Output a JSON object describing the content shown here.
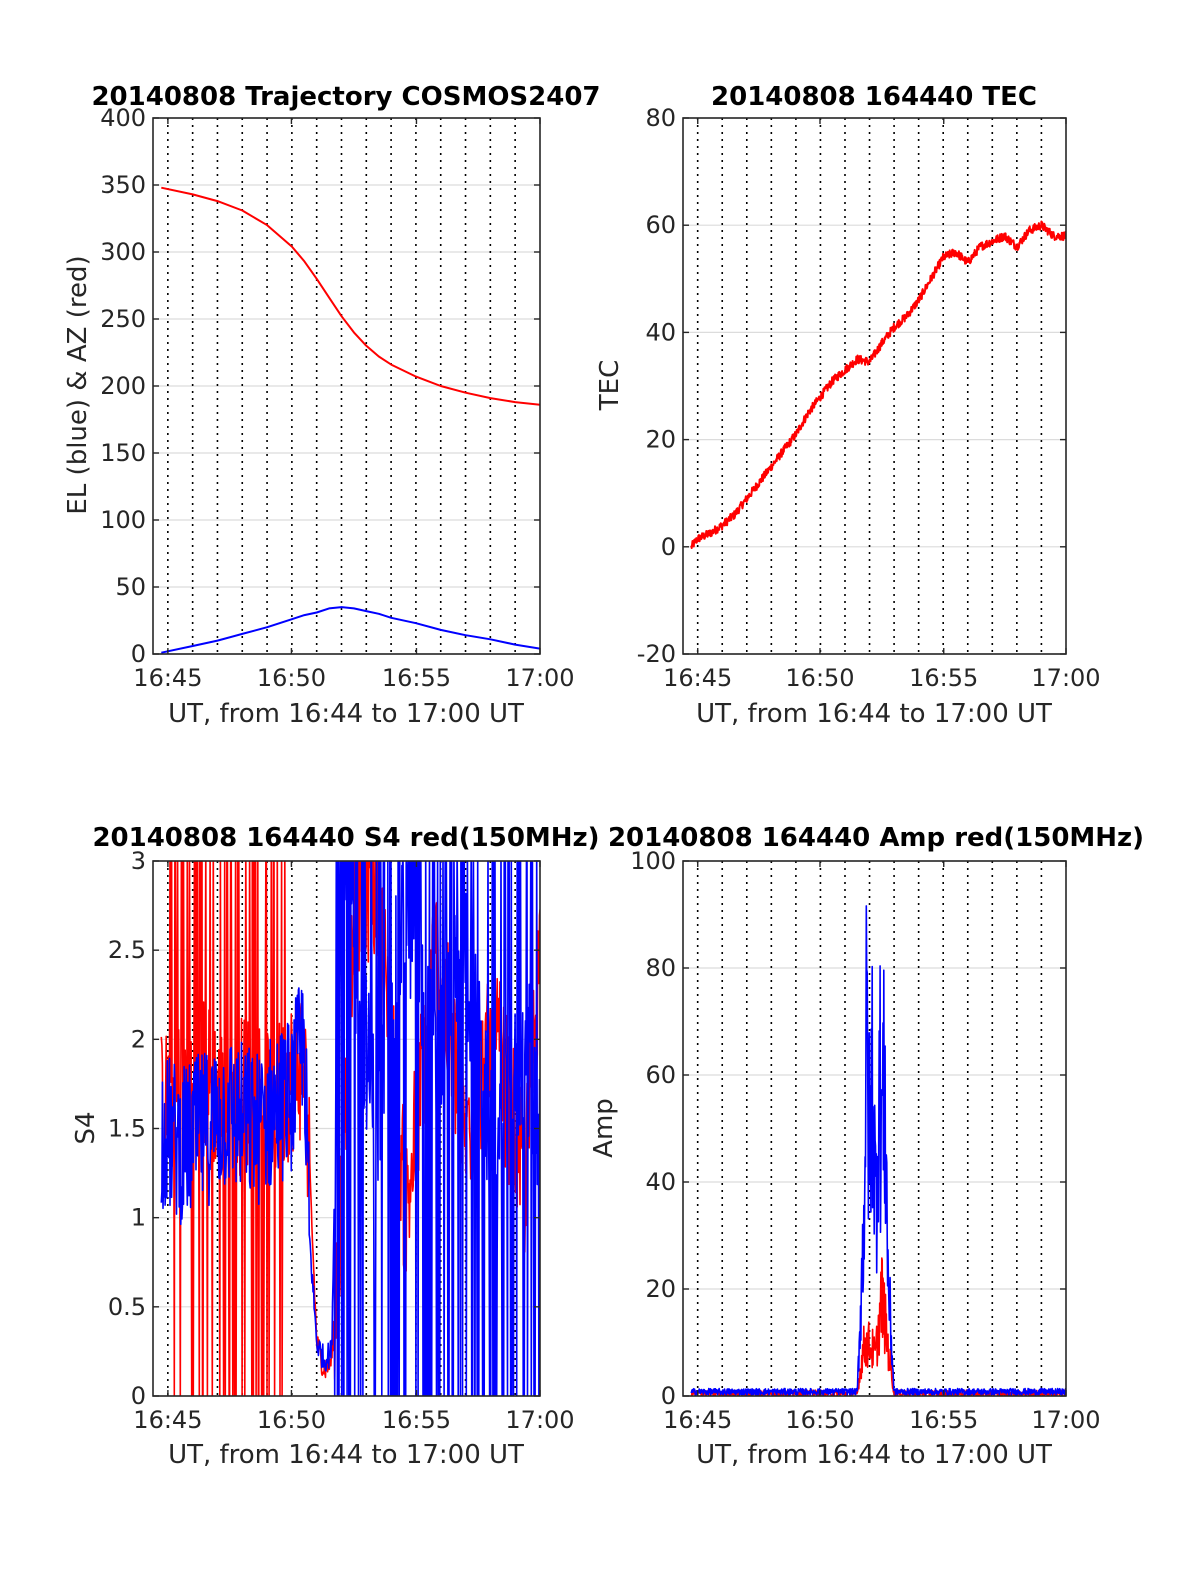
{
  "colors": {
    "az": "#ff0000",
    "el": "#0000ff",
    "grid": "#dcdcdc",
    "vgrid": "#000000"
  },
  "chart_data": [
    {
      "type": "line",
      "title": "20140808 Trajectory COSMOS2407",
      "xlabel": "UT, from 16:44 to 17:00 UT",
      "ylabel": "EL (blue) & AZ (red)",
      "xlim": [
        16.74,
        17.0
      ],
      "ylim": [
        0,
        400
      ],
      "xtick_values": [
        16.75,
        16.833,
        16.917,
        17.0
      ],
      "xticks": [
        "16:45",
        "16:50",
        "16:55",
        "17:00"
      ],
      "yticks": [
        "0",
        "50",
        "100",
        "150",
        "200",
        "250",
        "300",
        "350",
        "400"
      ],
      "grid": true,
      "series": [
        {
          "color": "#ff0000",
          "x": [
            16.7456,
            16.7667,
            16.7833,
            16.8,
            16.8167,
            16.8333,
            16.8417,
            16.85,
            16.8583,
            16.8667,
            16.875,
            16.8833,
            16.8917,
            16.9,
            16.9167,
            16.9333,
            16.95,
            16.9667,
            16.9833,
            17.0
          ],
          "y": [
            348,
            343,
            338,
            331,
            320,
            304,
            293,
            280,
            266,
            252,
            240,
            230,
            222,
            216,
            207,
            200,
            195,
            191,
            188,
            186
          ]
        },
        {
          "color": "#0000ff",
          "x": [
            16.7456,
            16.7667,
            16.7833,
            16.8,
            16.8167,
            16.8333,
            16.8417,
            16.85,
            16.8583,
            16.8667,
            16.875,
            16.8833,
            16.8917,
            16.9,
            16.9167,
            16.9333,
            16.95,
            16.9667,
            16.9833,
            17.0
          ],
          "y": [
            1,
            6,
            10,
            15,
            20,
            26,
            29,
            31,
            34,
            35,
            34,
            32,
            30,
            27,
            23,
            18,
            14,
            11,
            7,
            4
          ]
        }
      ]
    },
    {
      "type": "line",
      "title": "20140808 164440 TEC",
      "xlabel": "UT, from 16:44 to 17:00 UT",
      "ylabel": "TEC",
      "xlim": [
        16.74,
        17.0
      ],
      "ylim": [
        -20,
        80
      ],
      "xtick_values": [
        16.75,
        16.833,
        16.917,
        17.0
      ],
      "xticks": [
        "16:45",
        "16:50",
        "16:55",
        "17:00"
      ],
      "yticks": [
        "-20",
        "0",
        "20",
        "40",
        "60",
        "80"
      ],
      "grid": true,
      "series": [
        {
          "color": "#ff0000",
          "x": [
            16.7456,
            16.75,
            16.7583,
            16.7667,
            16.775,
            16.7833,
            16.7917,
            16.8,
            16.8083,
            16.8167,
            16.825,
            16.8333,
            16.8417,
            16.85,
            16.8583,
            16.8667,
            16.875,
            16.8833,
            16.8917,
            16.9,
            16.9083,
            16.9167,
            16.925,
            16.9333,
            16.9417,
            16.95,
            16.9583,
            16.9667,
            16.975,
            16.9833,
            16.9917,
            17.0
          ],
          "y": [
            0,
            1.5,
            2.5,
            4,
            6,
            9,
            12,
            15,
            18,
            21,
            25,
            28,
            31,
            33,
            35,
            34.5,
            38,
            41,
            43,
            46,
            50,
            54,
            55,
            53,
            56,
            57,
            58,
            56,
            59,
            60,
            58,
            58
          ]
        }
      ]
    },
    {
      "type": "line",
      "title": "20140808 164440 S4 red(150MHz)",
      "xlabel": "UT, from 16:44 to 17:00 UT",
      "ylabel": "S4",
      "xlim": [
        16.74,
        17.0
      ],
      "ylim": [
        0,
        3
      ],
      "xtick_values": [
        16.75,
        16.833,
        16.917,
        17.0
      ],
      "xticks": [
        "16:45",
        "16:50",
        "16:55",
        "17:00"
      ],
      "yticks": [
        "0",
        "0.5",
        "1",
        "1.5",
        "2",
        "2.5",
        "3"
      ],
      "grid": true,
      "series": [
        {
          "color": "#ff0000",
          "x": [
            16.7456,
            16.76,
            16.775,
            16.79,
            16.8,
            16.81,
            16.82,
            16.8333,
            16.8417,
            16.845,
            16.85,
            16.855,
            16.86,
            16.866,
            16.875,
            16.89,
            16.91,
            16.93,
            16.95,
            16.97,
            16.99,
            17.0
          ],
          "y": [
            1.6,
            1.7,
            1.8,
            1.6,
            1.7,
            1.75,
            1.6,
            1.8,
            1.9,
            1.3,
            0.3,
            0.15,
            0.2,
            1.0,
            2.8,
            2.9,
            1.0,
            2.5,
            1.5,
            2.0,
            1.2,
            2.5
          ]
        },
        {
          "color": "#0000ff",
          "x": [
            16.7456,
            16.76,
            16.775,
            16.79,
            16.8,
            16.81,
            16.82,
            16.8333,
            16.8417,
            16.845,
            16.85,
            16.855,
            16.86,
            16.866,
            16.875,
            16.89,
            16.91,
            16.93,
            16.95,
            16.97,
            16.99,
            17.0
          ],
          "y": [
            1.5,
            1.4,
            1.5,
            1.6,
            1.55,
            1.5,
            1.6,
            1.7,
            2.0,
            0.9,
            0.3,
            0.2,
            0.25,
            3.0,
            2.5,
            1.5,
            2.8,
            1.8,
            2.5,
            1.2,
            2.0,
            1.5
          ]
        }
      ]
    },
    {
      "type": "line",
      "title": "20140808 164440 Amp red(150MHz)",
      "xlabel": "UT, from 16:44 to 17:00 UT",
      "ylabel": "Amp",
      "xlim": [
        16.74,
        17.0
      ],
      "ylim": [
        0,
        100
      ],
      "xtick_values": [
        16.75,
        16.833,
        16.917,
        17.0
      ],
      "xticks": [
        "16:45",
        "16:50",
        "16:55",
        "17:00"
      ],
      "yticks": [
        "0",
        "20",
        "40",
        "60",
        "80",
        "100"
      ],
      "grid": true,
      "series": [
        {
          "color": "#ff0000",
          "x": [
            16.7456,
            16.8583,
            16.8625,
            16.8667,
            16.8708,
            16.875,
            16.8792,
            16.8833,
            17.0
          ],
          "y": [
            0.5,
            0.5,
            12,
            13,
            10,
            25,
            12,
            0.5,
            0.5
          ]
        },
        {
          "color": "#0000ff",
          "x": [
            16.7456,
            16.8583,
            16.8625,
            16.8646,
            16.8667,
            16.8688,
            16.8708,
            16.8729,
            16.875,
            16.8771,
            16.8792,
            16.8833,
            17.0
          ],
          "y": [
            0.8,
            0.8,
            40,
            89,
            60,
            85,
            45,
            80,
            70,
            75,
            30,
            0.8,
            0.8
          ]
        }
      ]
    }
  ]
}
